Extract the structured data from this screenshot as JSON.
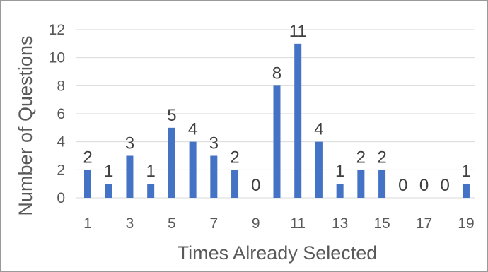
{
  "chart_data": {
    "type": "bar",
    "xlabel": "Times Already Selected",
    "ylabel": "Number of Questions",
    "categories": [
      1,
      2,
      3,
      4,
      5,
      6,
      7,
      8,
      9,
      10,
      11,
      12,
      13,
      14,
      15,
      16,
      17,
      18,
      19
    ],
    "values": [
      2,
      1,
      3,
      1,
      5,
      4,
      3,
      2,
      0,
      8,
      11,
      4,
      1,
      2,
      2,
      0,
      0,
      0,
      1
    ],
    "x_tick_labels": [
      "1",
      "3",
      "5",
      "7",
      "9",
      "11",
      "13",
      "15",
      "17",
      "19"
    ],
    "ylim": [
      0,
      12
    ],
    "y_ticks": [
      0,
      2,
      4,
      6,
      8,
      10,
      12
    ],
    "grid": true,
    "legend": "none",
    "bar_color": "#4472c4",
    "gridline_color": "#d9d9d9"
  }
}
